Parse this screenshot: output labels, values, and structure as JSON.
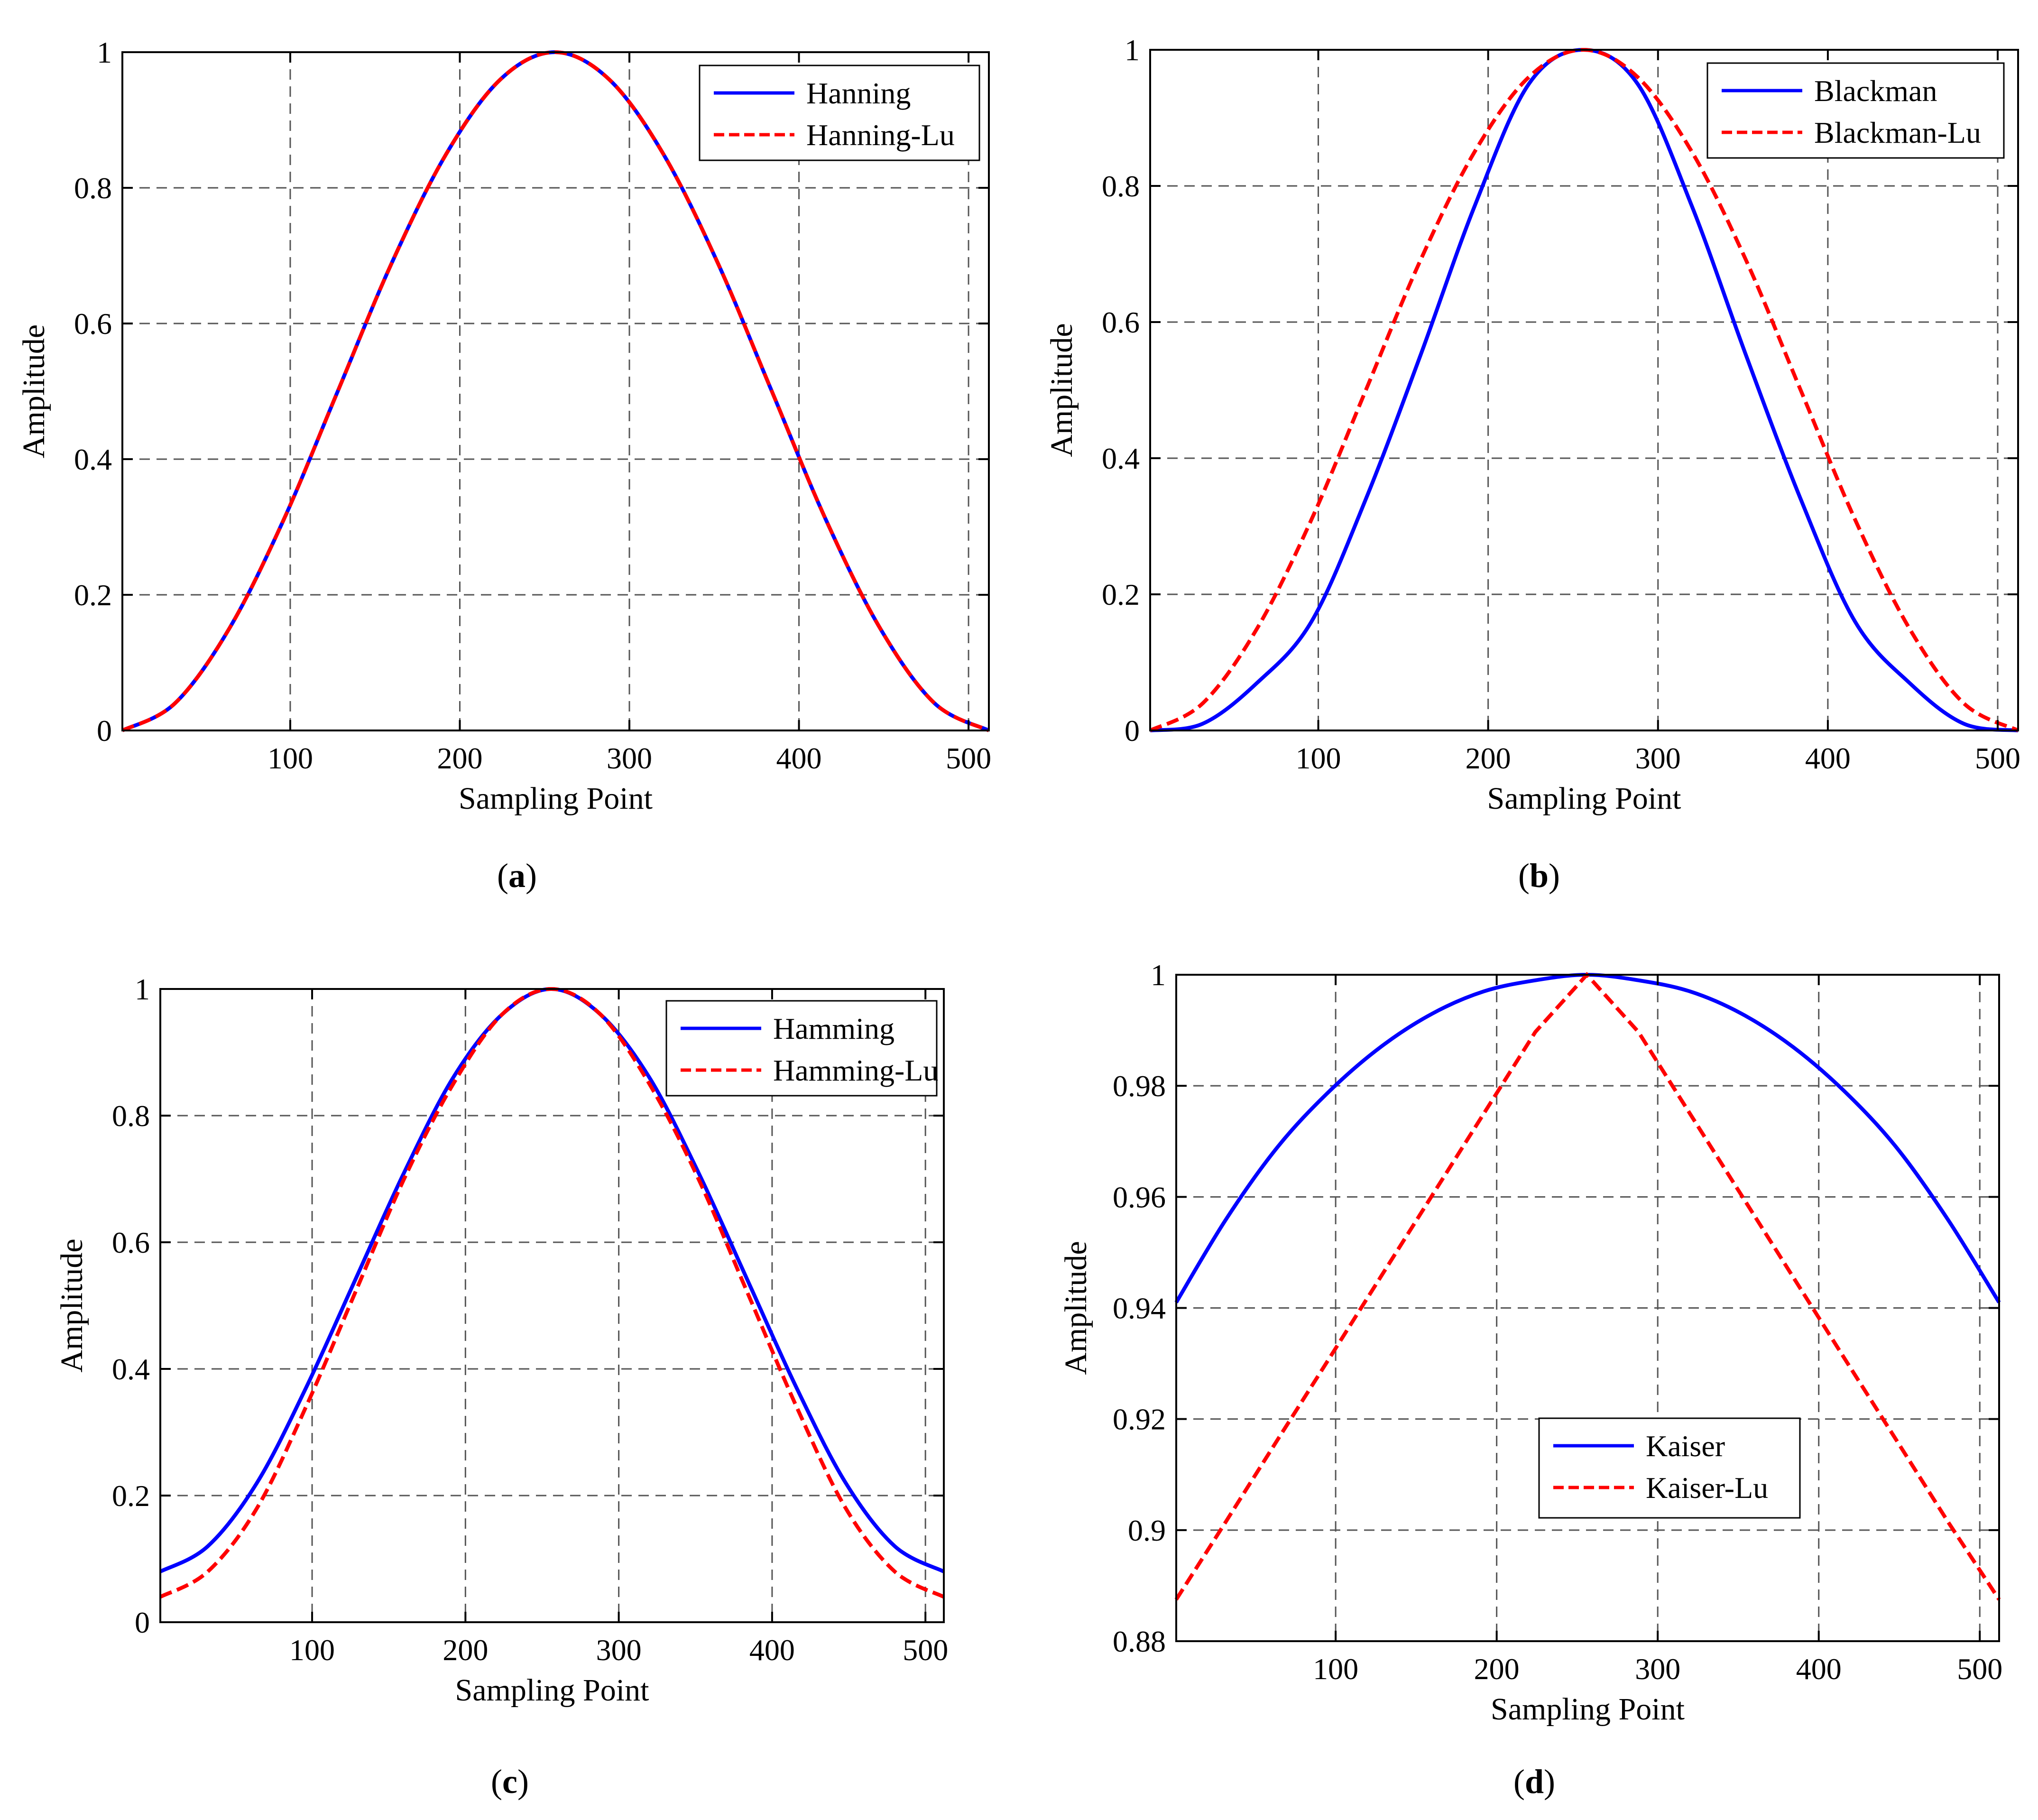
{
  "figure": {
    "panels": [
      "(a)",
      "(b)",
      "(c)",
      "(d)"
    ]
  },
  "colors": {
    "series1": "#0000ff",
    "series2": "#ff0000",
    "grid": "#555555",
    "axis": "#000000"
  },
  "chart_data": [
    {
      "panel": "a",
      "caption": "(a)",
      "type": "line",
      "xlabel": "Sampling Point",
      "ylabel": "Amplitude",
      "xlim": [
        1,
        512
      ],
      "ylim": [
        0,
        1
      ],
      "xticks": [
        100,
        200,
        300,
        400,
        500
      ],
      "yticks": [
        0,
        0.2,
        0.4,
        0.6,
        0.8,
        1
      ],
      "ytick_labels": [
        "0",
        "0.2",
        "0.4",
        "0.6",
        "0.8",
        "1"
      ],
      "grid": true,
      "legend_position": "top-right",
      "x": [
        1,
        32,
        64,
        96,
        128,
        160,
        192,
        224,
        256,
        288,
        320,
        352,
        384,
        416,
        448,
        480,
        512
      ],
      "series": [
        {
          "name": "Hanning",
          "style": "solid",
          "color": "#0000ff",
          "values": [
            0,
            0.04,
            0.15,
            0.31,
            0.5,
            0.69,
            0.85,
            0.96,
            1.0,
            0.96,
            0.85,
            0.69,
            0.5,
            0.31,
            0.15,
            0.04,
            0
          ]
        },
        {
          "name": "Hanning-Lu",
          "style": "dashed",
          "color": "#ff0000",
          "values": [
            0,
            0.04,
            0.15,
            0.31,
            0.5,
            0.69,
            0.85,
            0.96,
            1.0,
            0.96,
            0.85,
            0.69,
            0.5,
            0.31,
            0.15,
            0.04,
            0
          ]
        }
      ]
    },
    {
      "panel": "b",
      "caption": "(b)",
      "type": "line",
      "xlabel": "Sampling Point",
      "ylabel": "Amplitude",
      "xlim": [
        1,
        512
      ],
      "ylim": [
        0,
        1
      ],
      "xticks": [
        100,
        200,
        300,
        400,
        500
      ],
      "yticks": [
        0,
        0.2,
        0.4,
        0.6,
        0.8,
        1
      ],
      "ytick_labels": [
        "0",
        "0.2",
        "0.4",
        "0.6",
        "0.8",
        "1"
      ],
      "grid": true,
      "legend_position": "top-right",
      "x": [
        1,
        32,
        64,
        96,
        128,
        160,
        192,
        224,
        256,
        288,
        320,
        352,
        384,
        416,
        448,
        480,
        512
      ],
      "series": [
        {
          "name": "Blackman",
          "style": "solid",
          "color": "#0000ff",
          "values": [
            0,
            0.01,
            0.07,
            0.16,
            0.34,
            0.55,
            0.77,
            0.95,
            1.0,
            0.95,
            0.77,
            0.55,
            0.34,
            0.16,
            0.07,
            0.01,
            0
          ]
        },
        {
          "name": "Blackman-Lu",
          "style": "dashed",
          "color": "#ff0000",
          "values": [
            0,
            0.04,
            0.15,
            0.31,
            0.5,
            0.69,
            0.85,
            0.96,
            1.0,
            0.96,
            0.85,
            0.69,
            0.5,
            0.31,
            0.15,
            0.04,
            0
          ]
        }
      ]
    },
    {
      "panel": "c",
      "caption": "(c)",
      "type": "line",
      "xlabel": "Sampling Point",
      "ylabel": "Amplitude",
      "xlim": [
        1,
        512
      ],
      "ylim": [
        0,
        1
      ],
      "xticks": [
        100,
        200,
        300,
        400,
        500
      ],
      "yticks": [
        0,
        0.2,
        0.4,
        0.6,
        0.8,
        1
      ],
      "ytick_labels": [
        "0",
        "0.2",
        "0.4",
        "0.6",
        "0.8",
        "1"
      ],
      "grid": true,
      "legend_position": "top-right",
      "x": [
        1,
        32,
        64,
        96,
        128,
        160,
        192,
        224,
        256,
        288,
        320,
        352,
        384,
        416,
        448,
        480,
        512
      ],
      "series": [
        {
          "name": "Hamming",
          "style": "solid",
          "color": "#0000ff",
          "values": [
            0.08,
            0.12,
            0.22,
            0.37,
            0.54,
            0.71,
            0.86,
            0.96,
            1.0,
            0.96,
            0.86,
            0.71,
            0.54,
            0.37,
            0.22,
            0.12,
            0.08
          ]
        },
        {
          "name": "Hamming-Lu",
          "style": "dashed",
          "color": "#ff0000",
          "values": [
            0.04,
            0.08,
            0.18,
            0.34,
            0.52,
            0.7,
            0.85,
            0.96,
            1.0,
            0.96,
            0.85,
            0.7,
            0.52,
            0.34,
            0.18,
            0.08,
            0.04
          ]
        }
      ]
    },
    {
      "panel": "d",
      "caption": "(d)",
      "type": "line",
      "xlabel": "Sampling Point",
      "ylabel": "Amplitude",
      "xlim": [
        1,
        512
      ],
      "ylim": [
        0.88,
        1
      ],
      "xticks": [
        100,
        200,
        300,
        400,
        500
      ],
      "yticks": [
        0.88,
        0.9,
        0.92,
        0.94,
        0.96,
        0.98,
        1
      ],
      "ytick_labels": [
        "0.88",
        "0.9",
        "0.92",
        "0.94",
        "0.96",
        "0.98",
        "1"
      ],
      "grid": true,
      "legend_position": "bottom-center",
      "x": [
        1,
        32,
        64,
        96,
        128,
        160,
        192,
        224,
        256,
        288,
        320,
        352,
        384,
        416,
        448,
        480,
        512
      ],
      "series": [
        {
          "name": "Kaiser",
          "style": "solid",
          "color": "#0000ff",
          "values": [
            0.941,
            0.956,
            0.969,
            0.979,
            0.987,
            0.993,
            0.997,
            0.999,
            1.0,
            0.999,
            0.997,
            0.993,
            0.987,
            0.979,
            0.969,
            0.956,
            0.941
          ]
        },
        {
          "name": "Kaiser-Lu",
          "style": "dashed",
          "color": "#ff0000",
          "values": [
            0.8875,
            0.9016,
            0.9163,
            0.9309,
            0.9456,
            0.9603,
            0.975,
            0.9897,
            1.0,
            0.9897,
            0.975,
            0.9603,
            0.9456,
            0.9309,
            0.9163,
            0.9016,
            0.8875
          ]
        }
      ]
    }
  ]
}
